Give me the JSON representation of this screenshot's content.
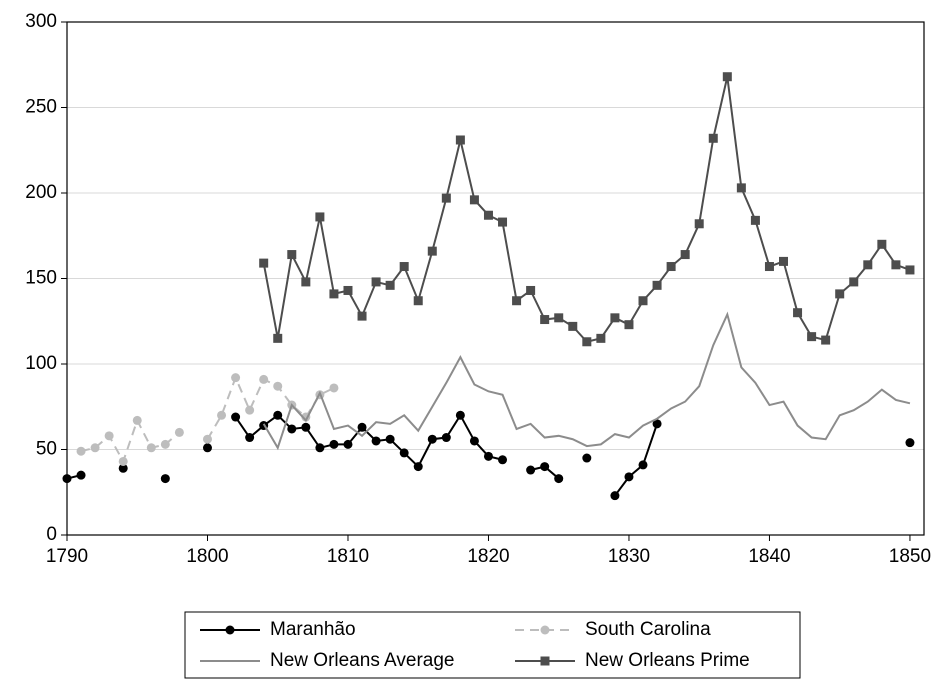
{
  "chart_data": {
    "type": "line",
    "x": [
      1790,
      1791,
      1792,
      1793,
      1794,
      1795,
      1796,
      1797,
      1798,
      1799,
      1800,
      1801,
      1802,
      1803,
      1804,
      1805,
      1806,
      1807,
      1808,
      1809,
      1810,
      1811,
      1812,
      1813,
      1814,
      1815,
      1816,
      1817,
      1818,
      1819,
      1820,
      1821,
      1822,
      1823,
      1824,
      1825,
      1826,
      1827,
      1828,
      1829,
      1830,
      1831,
      1832,
      1833,
      1834,
      1835,
      1836,
      1837,
      1838,
      1839,
      1840,
      1841,
      1842,
      1843,
      1844,
      1845,
      1846,
      1847,
      1848,
      1849,
      1850
    ],
    "series": [
      {
        "name": "Maranhão",
        "color": "#000000",
        "marker": "circle",
        "dash": false,
        "values": [
          33,
          35,
          null,
          null,
          39,
          null,
          null,
          33,
          null,
          null,
          51,
          null,
          69,
          57,
          64,
          70,
          62,
          63,
          51,
          53,
          53,
          63,
          55,
          56,
          48,
          40,
          56,
          57,
          70,
          55,
          46,
          44,
          null,
          38,
          40,
          33,
          null,
          45,
          null,
          23,
          34,
          41,
          65,
          null,
          null,
          null,
          null,
          null,
          null,
          null,
          null,
          null,
          null,
          null,
          null,
          null,
          null,
          null,
          null,
          null,
          54
        ]
      },
      {
        "name": "South Carolina",
        "color": "#bdbdbd",
        "marker": "circle",
        "dash": true,
        "values": [
          null,
          49,
          51,
          58,
          43,
          67,
          51,
          53,
          60,
          null,
          56,
          70,
          92,
          73,
          91,
          87,
          76,
          69,
          82,
          86,
          null,
          null,
          null,
          null,
          null,
          null,
          null,
          null,
          null,
          null,
          null,
          null,
          null,
          null,
          null,
          null,
          null,
          null,
          null,
          null,
          null,
          null,
          null,
          null,
          null,
          null,
          null,
          null,
          null,
          null,
          null,
          null,
          null,
          null,
          null,
          null,
          null,
          null,
          null,
          null,
          null
        ]
      },
      {
        "name": "New Orleans Average",
        "color": "#8c8c8c",
        "marker": null,
        "dash": false,
        "values": [
          null,
          null,
          null,
          null,
          null,
          null,
          null,
          null,
          null,
          null,
          null,
          null,
          null,
          null,
          65,
          51,
          76,
          67,
          83,
          62,
          64,
          58,
          66,
          65,
          70,
          61,
          75,
          89,
          104,
          88,
          84,
          82,
          62,
          65,
          57,
          58,
          56,
          52,
          53,
          59,
          57,
          64,
          68,
          74,
          78,
          87,
          111,
          129,
          98,
          89,
          76,
          78,
          64,
          57,
          56,
          70,
          73,
          78,
          85,
          79,
          77
        ]
      },
      {
        "name": "New Orleans Prime",
        "color": "#4d4d4d",
        "marker": "square",
        "dash": false,
        "values": [
          null,
          null,
          null,
          null,
          null,
          null,
          null,
          null,
          null,
          null,
          null,
          null,
          null,
          null,
          159,
          115,
          164,
          148,
          186,
          141,
          143,
          128,
          148,
          146,
          157,
          137,
          166,
          197,
          231,
          196,
          187,
          183,
          137,
          143,
          126,
          127,
          122,
          113,
          115,
          127,
          123,
          137,
          146,
          157,
          164,
          182,
          232,
          268,
          203,
          184,
          157,
          160,
          130,
          116,
          114,
          141,
          148,
          158,
          170,
          158,
          155
        ]
      }
    ],
    "xlim": [
      1790,
      1851
    ],
    "xticks": [
      1790,
      1800,
      1810,
      1820,
      1830,
      1840,
      1850
    ],
    "ylim": [
      0,
      300
    ],
    "yticks": [
      0,
      50,
      100,
      150,
      200,
      250,
      300
    ],
    "grid": true,
    "legend": "bottom"
  }
}
